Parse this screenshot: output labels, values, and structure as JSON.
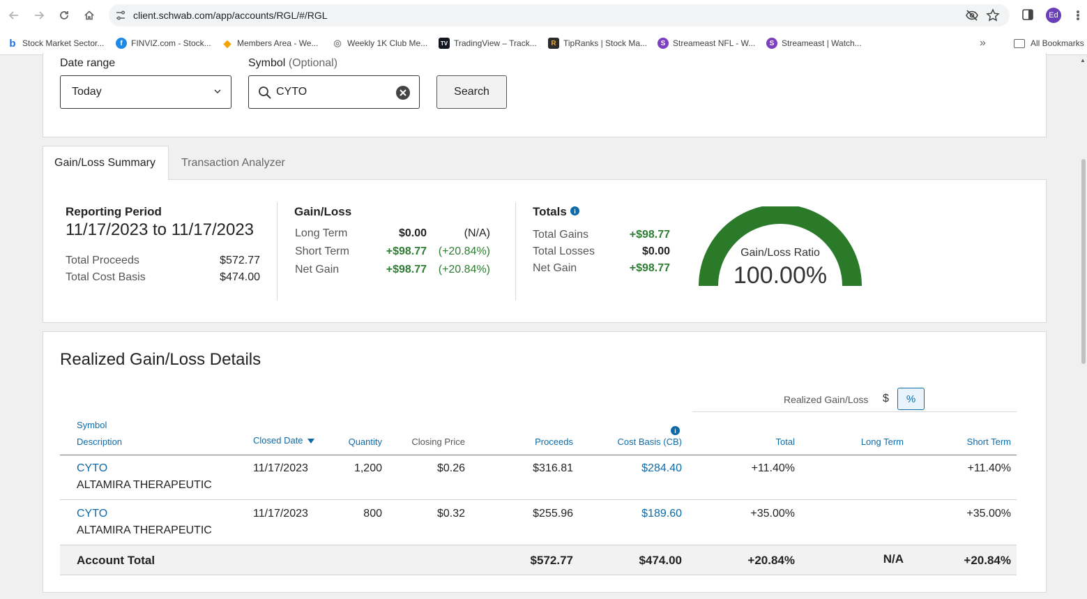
{
  "browser": {
    "url": "client.schwab.com/app/accounts/RGL/#/RGL",
    "profile_initials": "Ed",
    "bookmarks": [
      {
        "label": "Stock Market Sector...",
        "icon": "bing-icon",
        "color": "#1a73e8",
        "glyph": "b"
      },
      {
        "label": "FINVIZ.com - Stock...",
        "icon": "finviz-icon",
        "color": "#1e88e5",
        "glyph": "f"
      },
      {
        "label": "Members Area - We...",
        "icon": "members-icon",
        "color": "#f4a300",
        "glyph": "◆"
      },
      {
        "label": "Weekly 1K Club Me...",
        "icon": "club-icon",
        "color": "#888888",
        "glyph": "◎"
      },
      {
        "label": "TradingView – Track...",
        "icon": "tradingview-icon",
        "color": "#131722",
        "glyph": "TV"
      },
      {
        "label": "TipRanks | Stock Ma...",
        "icon": "tipranks-icon",
        "color": "#2b2b2b",
        "glyph": "R"
      },
      {
        "label": "Streameast NFL - W...",
        "icon": "streameast-icon",
        "color": "#7b3fbf",
        "glyph": "S"
      },
      {
        "label": "Streameast | Watch...",
        "icon": "streameast-icon",
        "color": "#7b3fbf",
        "glyph": "S"
      }
    ],
    "all_bookmarks": "All Bookmarks"
  },
  "filters": {
    "date_range_label": "Date range",
    "date_range_value": "Today",
    "symbol_label": "Symbol",
    "symbol_optional": "(Optional)",
    "symbol_value": "CYTO",
    "search_label": "Search"
  },
  "tabs": [
    {
      "label": "Gain/Loss Summary",
      "active": true
    },
    {
      "label": "Transaction Analyzer",
      "active": false
    }
  ],
  "summary": {
    "reporting_title": "Reporting Period",
    "reporting_range": "11/17/2023 to 11/17/2023",
    "total_proceeds_label": "Total Proceeds",
    "total_proceeds": "$572.77",
    "total_cost_basis_label": "Total Cost Basis",
    "total_cost_basis": "$474.00",
    "gainloss_title": "Gain/Loss",
    "long_term_label": "Long Term",
    "long_term_value": "$0.00",
    "long_term_pct": "(N/A)",
    "short_term_label": "Short Term",
    "short_term_value": "+$98.77",
    "short_term_pct": "(+20.84%)",
    "net_gain_label": "Net Gain",
    "net_gain_value": "+$98.77",
    "net_gain_pct": "(+20.84%)",
    "totals_title": "Totals",
    "total_gains_label": "Total Gains",
    "total_gains": "+$98.77",
    "total_losses_label": "Total Losses",
    "total_losses": "$0.00",
    "totals_net_label": "Net Gain",
    "totals_net": "+$98.77",
    "gauge_label": "Gain/Loss Ratio",
    "gauge_value": "100.00%",
    "gauge_ratio": 1.0,
    "gauge_color": "#2a7a2a"
  },
  "details": {
    "title": "Realized Gain/Loss Details",
    "toggle_label": "Realized Gain/Loss",
    "toggle_dollar": "$",
    "toggle_pct": "%",
    "headers": {
      "symbol": "Symbol",
      "description": "Description",
      "closed_date": "Closed Date",
      "quantity": "Quantity",
      "closing_price": "Closing Price",
      "proceeds": "Proceeds",
      "cost_basis": "Cost Basis (CB)",
      "total": "Total",
      "long_term": "Long Term",
      "short_term": "Short Term"
    },
    "rows": [
      {
        "symbol": "CYTO",
        "description": "ALTAMIRA THERAPEUTIC",
        "closed_date": "11/17/2023",
        "quantity": "1,200",
        "closing_price": "$0.26",
        "proceeds": "$316.81",
        "cost_basis": "$284.40",
        "total": "+11.40%",
        "long_term": "",
        "short_term": "+11.40%"
      },
      {
        "symbol": "CYTO",
        "description": "ALTAMIRA THERAPEUTIC",
        "closed_date": "11/17/2023",
        "quantity": "800",
        "closing_price": "$0.32",
        "proceeds": "$255.96",
        "cost_basis": "$189.60",
        "total": "+35.00%",
        "long_term": "",
        "short_term": "+35.00%"
      }
    ],
    "account_total": {
      "label": "Account Total",
      "proceeds": "$572.77",
      "cost_basis": "$474.00",
      "total": "+20.84%",
      "long_term": "N/A",
      "short_term": "+20.84%"
    }
  }
}
